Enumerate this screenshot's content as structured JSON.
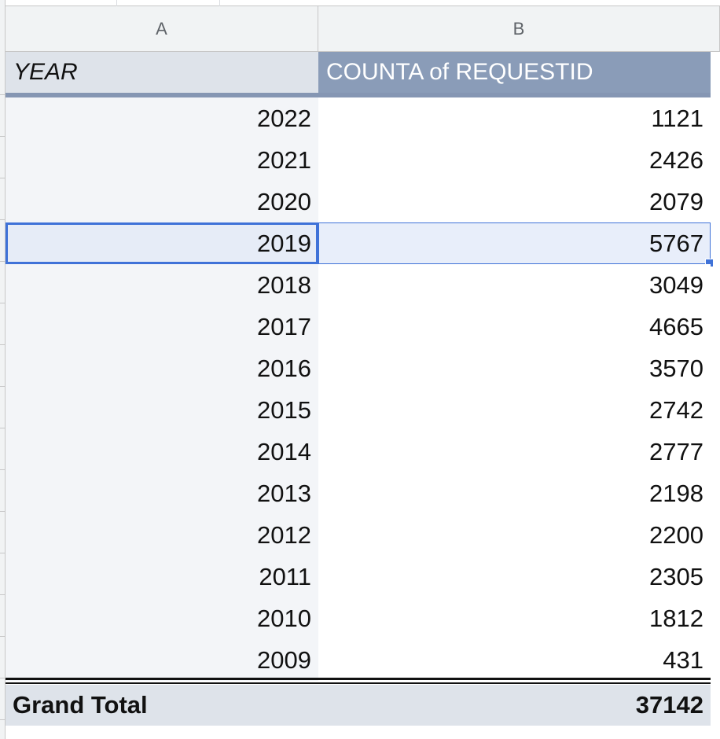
{
  "columns": {
    "a": "A",
    "b": "B"
  },
  "pivot": {
    "row_header": "YEAR",
    "value_header": "COUNTA of REQUESTID",
    "rows": [
      {
        "year": "2022",
        "count": "1121"
      },
      {
        "year": "2021",
        "count": "2426"
      },
      {
        "year": "2020",
        "count": "2079"
      },
      {
        "year": "2019",
        "count": "5767"
      },
      {
        "year": "2018",
        "count": "3049"
      },
      {
        "year": "2017",
        "count": "4665"
      },
      {
        "year": "2016",
        "count": "3570"
      },
      {
        "year": "2015",
        "count": "2742"
      },
      {
        "year": "2014",
        "count": "2777"
      },
      {
        "year": "2013",
        "count": "2198"
      },
      {
        "year": "2012",
        "count": "2200"
      },
      {
        "year": "2011",
        "count": "2305"
      },
      {
        "year": "2010",
        "count": "1812"
      },
      {
        "year": "2009",
        "count": "431"
      }
    ],
    "grand_total_label": "Grand Total",
    "grand_total_value": "37142",
    "selected_year": "2019"
  },
  "colors": {
    "pivot_header_bg": "#8a9cb8",
    "row_label_bg": "#f3f5f8",
    "selection": "#3f72d8"
  }
}
